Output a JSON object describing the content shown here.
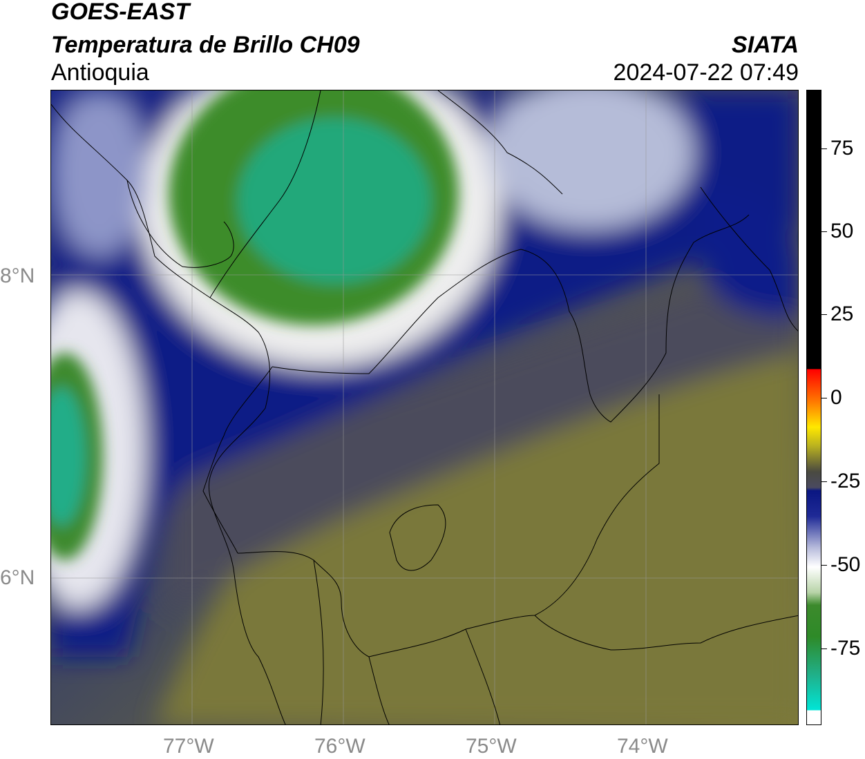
{
  "header": {
    "title_line1": "GOES-EAST",
    "title_line2": "Temperatura de Brillo CH09",
    "region": "Antioquia",
    "organization": "SIATA",
    "timestamp": "2024-07-22 07:49"
  },
  "map": {
    "lat_labels": [
      "8°N",
      "6°N"
    ],
    "lon_labels": [
      "77°W",
      "76°W",
      "75°W",
      "74°W"
    ],
    "gridlines": true,
    "colors": {
      "warm_surface": "#7b7a3a",
      "mid_gray": "#4a4a5a",
      "deep_blue": "#0a1a80",
      "white_band": "#f2f2f2",
      "cold_green": "#3d8a2a",
      "coldest_teal": "#20b08a"
    }
  },
  "colorbar": {
    "tick_labels": [
      "75",
      "50",
      "25",
      "0",
      "-25",
      "-50",
      "-75"
    ],
    "colors": [
      "#000000",
      "#ff0000",
      "#ff8c00",
      "#ffff00",
      "#5a5a3a",
      "#001080",
      "#ffffff",
      "#2e8a28",
      "#00e5d6"
    ]
  }
}
